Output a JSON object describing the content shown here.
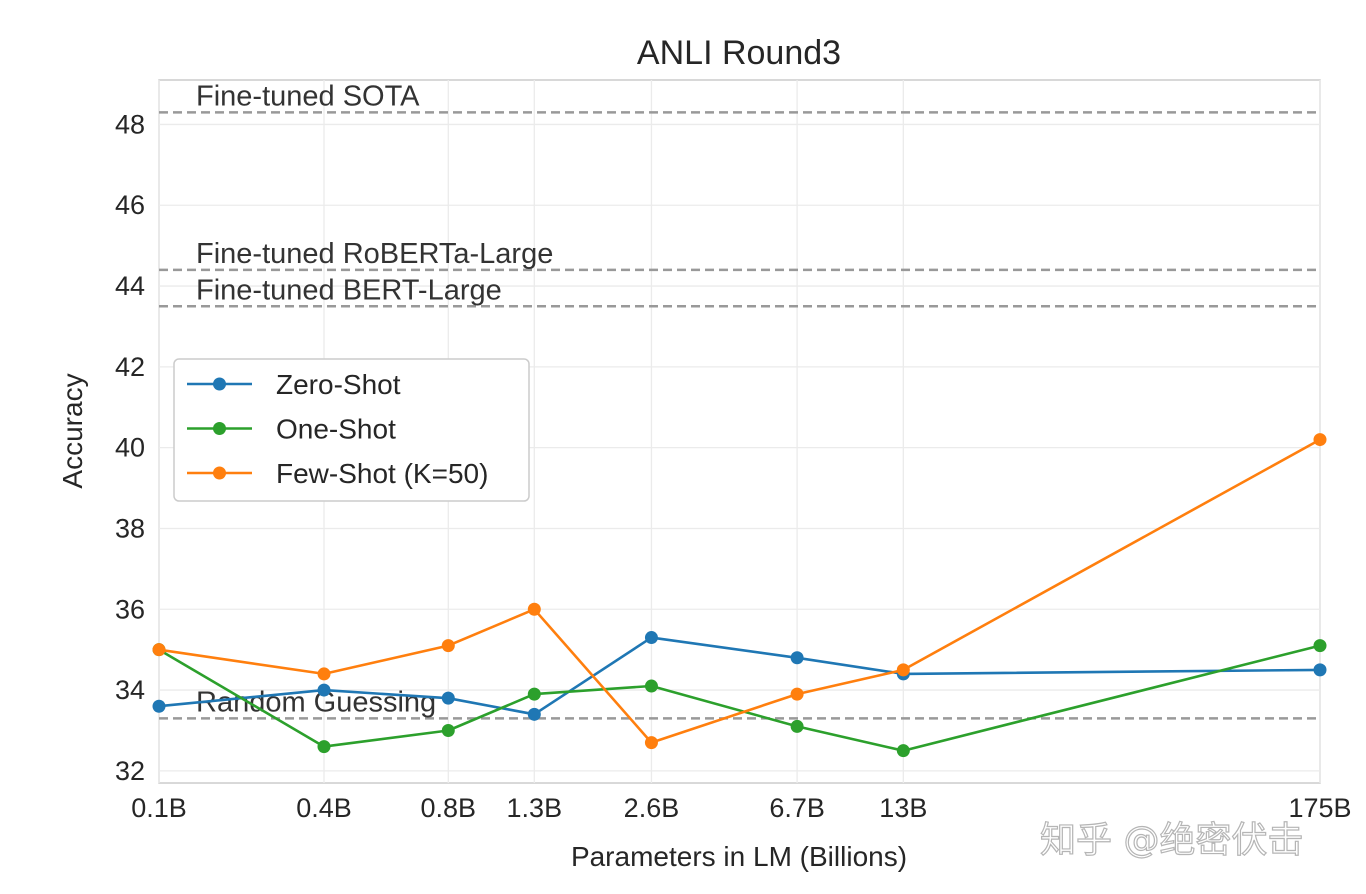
{
  "chart_data": {
    "type": "line",
    "title": "ANLI Round3",
    "xlabel": "Parameters in LM (Billions)",
    "ylabel": "Accuracy",
    "x_scale": "log",
    "x": [
      0.125,
      0.35,
      0.76,
      1.3,
      2.7,
      6.7,
      13,
      175
    ],
    "x_tick_labels": [
      "0.1B",
      "0.4B",
      "0.8B",
      "1.3B",
      "2.6B",
      "6.7B",
      "13B",
      "175B"
    ],
    "ylim": [
      31.7,
      49.1
    ],
    "y_ticks": [
      32,
      34,
      36,
      38,
      40,
      42,
      44,
      46,
      48
    ],
    "grid": true,
    "legend_position": "center-left",
    "series": [
      {
        "name": "Zero-Shot",
        "color": "#1f77b4",
        "values": [
          33.6,
          34.0,
          33.8,
          33.4,
          35.3,
          34.8,
          34.4,
          34.5
        ]
      },
      {
        "name": "One-Shot",
        "color": "#2ca02c",
        "values": [
          35.0,
          32.6,
          33.0,
          33.9,
          34.1,
          33.1,
          32.5,
          35.1
        ]
      },
      {
        "name": "Few-Shot (K=50)",
        "color": "#ff7f0e",
        "values": [
          35.0,
          34.4,
          35.1,
          36.0,
          32.7,
          33.9,
          34.5,
          40.2
        ]
      }
    ],
    "reference_lines": [
      {
        "label": "Fine-tuned SOTA",
        "value": 48.3
      },
      {
        "label": "Fine-tuned RoBERTa-Large",
        "value": 44.4
      },
      {
        "label": "Fine-tuned BERT-Large",
        "value": 43.5
      },
      {
        "label": "Random Guessing",
        "value": 33.3
      }
    ],
    "reference_line_color": "#999999"
  },
  "watermark": "知乎 @绝密伏击"
}
